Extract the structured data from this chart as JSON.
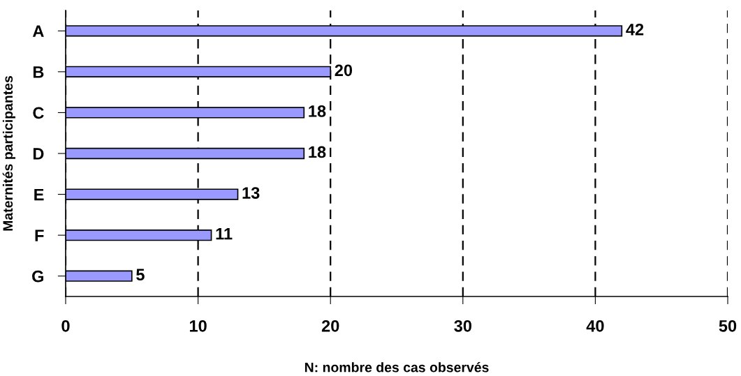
{
  "chart_data": {
    "type": "bar",
    "orientation": "horizontal",
    "ylabel": "Maternités participantes",
    "xlabel": "N: nombre des cas observés",
    "categories": [
      "A",
      "B",
      "C",
      "D",
      "E",
      "F",
      "G"
    ],
    "values": [
      42,
      20,
      18,
      18,
      13,
      11,
      5
    ],
    "color": "#9999ff",
    "xlim": [
      0,
      50
    ],
    "xticks": [
      0,
      10,
      20,
      30,
      40,
      50
    ],
    "grid": "x",
    "data_labels": true
  }
}
